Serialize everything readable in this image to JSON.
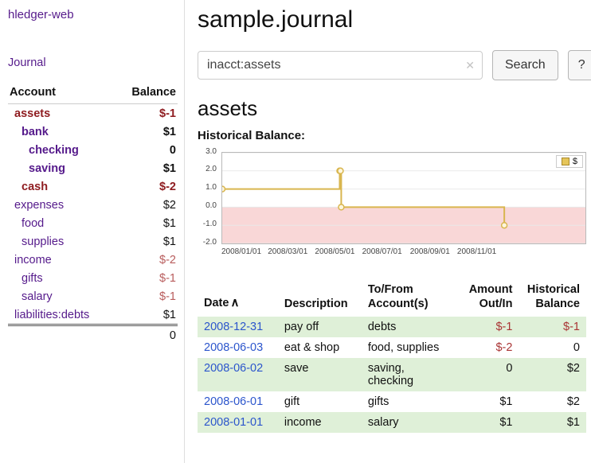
{
  "colors": {
    "link_purple": "#551a8b",
    "neg_strong": "#8f1d21",
    "neg_soft": "#b85c5c",
    "amount_negative": "#a93434",
    "date_blue": "#2b55cc",
    "row_green": "#dff0d8",
    "chart_line": "#d9b64f",
    "chart_negative_fill": "#f9d7d7"
  },
  "sidebar": {
    "brand": "hledger-web",
    "nav": [
      {
        "label": "Journal"
      }
    ],
    "table": {
      "account_header": "Account",
      "balance_header": "Balance"
    },
    "accounts": [
      {
        "label": "assets",
        "depth": 0,
        "balance": "$-1",
        "name_style": "maroon",
        "balance_style": "maroon",
        "bold": true
      },
      {
        "label": "bank",
        "depth": 1,
        "balance": "$1",
        "name_style": "purple",
        "balance_style": "black",
        "bold": true
      },
      {
        "label": "checking",
        "depth": 2,
        "balance": "0",
        "name_style": "purple",
        "balance_style": "black",
        "bold": true
      },
      {
        "label": "saving",
        "depth": 2,
        "balance": "$1",
        "name_style": "purple",
        "balance_style": "black",
        "bold": true
      },
      {
        "label": "cash",
        "depth": 1,
        "balance": "$-2",
        "name_style": "maroon",
        "balance_style": "maroon",
        "bold": true
      },
      {
        "label": "expenses",
        "depth": 0,
        "balance": "$2",
        "name_style": "purple",
        "balance_style": "black",
        "bold": false
      },
      {
        "label": "food",
        "depth": 1,
        "balance": "$1",
        "name_style": "purple",
        "balance_style": "black",
        "bold": false
      },
      {
        "label": "supplies",
        "depth": 1,
        "balance": "$1",
        "name_style": "purple",
        "balance_style": "black",
        "bold": false
      },
      {
        "label": "income",
        "depth": 0,
        "balance": "$-2",
        "name_style": "purple",
        "balance_style": "softred",
        "bold": false
      },
      {
        "label": "gifts",
        "depth": 1,
        "balance": "$-1",
        "name_style": "purple",
        "balance_style": "softred",
        "bold": false
      },
      {
        "label": "salary",
        "depth": 1,
        "balance": "$-1",
        "name_style": "purple",
        "balance_style": "softred",
        "bold": false
      },
      {
        "label": "liabilities:debts",
        "depth": 0,
        "balance": "$1",
        "name_style": "purple",
        "balance_style": "black",
        "bold": false
      }
    ],
    "total": "0"
  },
  "main": {
    "title": "sample.journal",
    "search": {
      "value": "inacct:assets",
      "clear_icon": "✕",
      "submit_label": "Search",
      "help_label": "?"
    },
    "account_heading": "assets",
    "chart_title": "Historical Balance:"
  },
  "chart_data": {
    "type": "line",
    "step": true,
    "title": "Historical Balance",
    "legend": [
      {
        "label": "$",
        "color": "#e5c55a"
      }
    ],
    "ylim": [
      -2,
      3
    ],
    "yticks": [
      {
        "v": 3,
        "label": "3.0"
      },
      {
        "v": 2,
        "label": "2.0"
      },
      {
        "v": 1,
        "label": "1.0"
      },
      {
        "v": 0,
        "label": "0.0"
      },
      {
        "v": -1,
        "label": "-1.0"
      },
      {
        "v": -2,
        "label": "-2.0"
      }
    ],
    "x_domain_days": 470,
    "xticks": [
      {
        "day": 0,
        "label": "2008/01/01"
      },
      {
        "day": 60,
        "label": "2008/03/01"
      },
      {
        "day": 121,
        "label": "2008/05/01"
      },
      {
        "day": 182,
        "label": "2008/07/01"
      },
      {
        "day": 244,
        "label": "2008/09/01"
      },
      {
        "day": 305,
        "label": "2008/11/01"
      }
    ],
    "series": [
      {
        "name": "$",
        "points": [
          {
            "day": 0,
            "date": "2008-01-01",
            "value": 1
          },
          {
            "day": 152,
            "date": "2008-06-01",
            "value": 2
          },
          {
            "day": 153,
            "date": "2008-06-02",
            "value": 2
          },
          {
            "day": 154,
            "date": "2008-06-03",
            "value": 0
          },
          {
            "day": 365,
            "date": "2008-12-31",
            "value": -1
          }
        ]
      }
    ]
  },
  "register": {
    "headers": {
      "date": "Date",
      "description": "Description",
      "to_from": "To/From Account(s)",
      "amount": "Amount Out/In",
      "balance": "Historical Balance"
    },
    "sort_icon": "∧",
    "rows": [
      {
        "date": "2008-12-31",
        "description": "pay off",
        "to_from": "debts",
        "amount": "$-1",
        "amount_neg": true,
        "balance": "$-1",
        "balance_neg": true
      },
      {
        "date": "2008-06-03",
        "description": "eat & shop",
        "to_from": "food, supplies",
        "amount": "$-2",
        "amount_neg": true,
        "balance": "0",
        "balance_neg": false
      },
      {
        "date": "2008-06-02",
        "description": "save",
        "to_from": "saving,\nchecking",
        "amount": "0",
        "amount_neg": false,
        "balance": "$2",
        "balance_neg": false
      },
      {
        "date": "2008-06-01",
        "description": "gift",
        "to_from": "gifts",
        "amount": "$1",
        "amount_neg": false,
        "balance": "$2",
        "balance_neg": false
      },
      {
        "date": "2008-01-01",
        "description": "income",
        "to_from": "salary",
        "amount": "$1",
        "amount_neg": false,
        "balance": "$1",
        "balance_neg": false
      }
    ]
  }
}
